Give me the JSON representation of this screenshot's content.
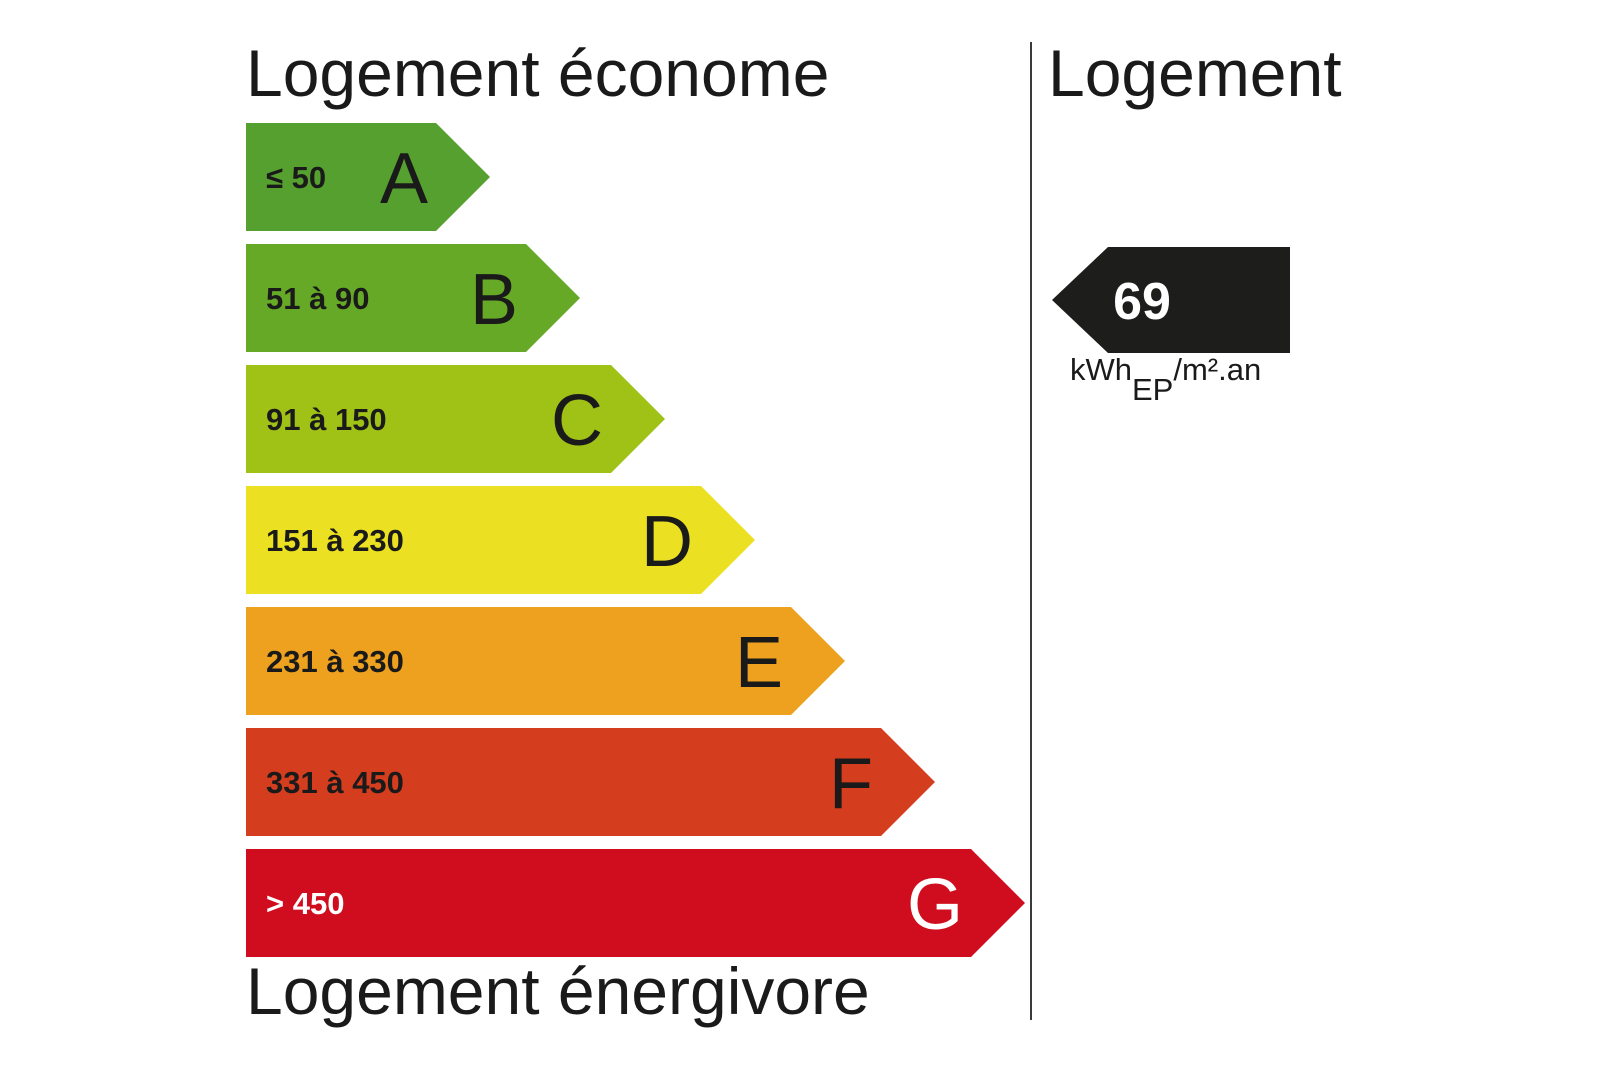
{
  "titles": {
    "top": "Logement économe",
    "bottom": "Logement énergivore",
    "right": "Logement"
  },
  "classes": [
    {
      "letter": "A",
      "range": "≤ 50",
      "color": "#55a02e",
      "text_color": "#1a1a1a"
    },
    {
      "letter": "B",
      "range": "51 à 90",
      "color": "#66a926",
      "text_color": "#1a1a1a"
    },
    {
      "letter": "C",
      "range": "91 à 150",
      "color": "#a0c116",
      "text_color": "#1a1a1a"
    },
    {
      "letter": "D",
      "range": "151 à 230",
      "color": "#ebe021",
      "text_color": "#1a1a1a"
    },
    {
      "letter": "E",
      "range": "231 à 330",
      "color": "#eea11f",
      "text_color": "#1a1a1a"
    },
    {
      "letter": "F",
      "range": "331 à 450",
      "color": "#d53d1f",
      "text_color": "#1a1a1a"
    },
    {
      "letter": "G",
      "range": "> 450",
      "color": "#d00d1e",
      "text_color": "#ffffff"
    }
  ],
  "indicator": {
    "value": "69",
    "class": "B",
    "color": "#1d1d1b",
    "unit_main": "kWh",
    "unit_sub": "EP",
    "unit_rest": "/m².an"
  }
}
